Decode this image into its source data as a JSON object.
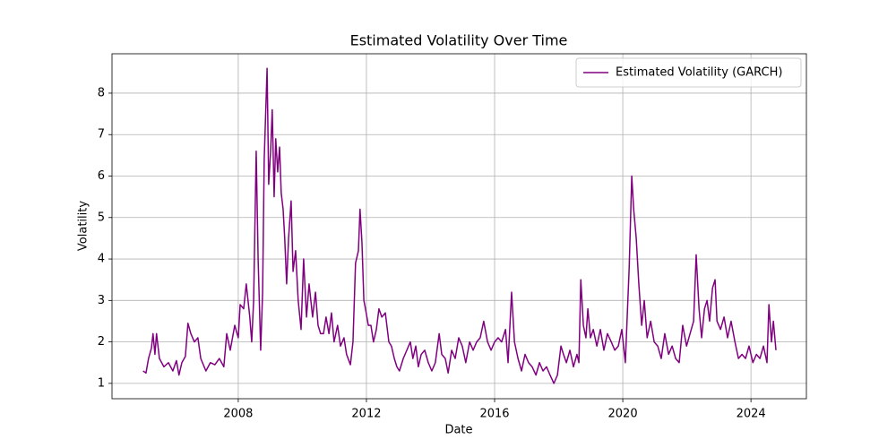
{
  "chart_data": {
    "type": "line",
    "title": "Estimated Volatility Over Time",
    "x_label": "Date",
    "y_label": "Volatility",
    "x": [
      2005.03,
      2005.12,
      2005.2,
      2005.29,
      2005.34,
      2005.4,
      2005.45,
      2005.54,
      2005.68,
      2005.82,
      2005.96,
      2006.07,
      2006.15,
      2006.24,
      2006.35,
      2006.43,
      2006.52,
      2006.63,
      2006.74,
      2006.83,
      2006.99,
      2007.13,
      2007.27,
      2007.41,
      2007.55,
      2007.64,
      2007.75,
      2007.89,
      2008.0,
      2008.06,
      2008.17,
      2008.25,
      2008.36,
      2008.42,
      2008.48,
      2008.56,
      2008.62,
      2008.7,
      2008.76,
      2008.81,
      2008.9,
      2008.95,
      2009.01,
      2009.06,
      2009.12,
      2009.17,
      2009.23,
      2009.29,
      2009.34,
      2009.4,
      2009.45,
      2009.51,
      2009.57,
      2009.65,
      2009.71,
      2009.79,
      2009.87,
      2009.96,
      2010.04,
      2010.13,
      2010.21,
      2010.32,
      2010.41,
      2010.49,
      2010.57,
      2010.66,
      2010.74,
      2010.83,
      2010.91,
      2010.99,
      2011.1,
      2011.19,
      2011.3,
      2011.38,
      2011.5,
      2011.58,
      2011.66,
      2011.75,
      2011.8,
      2011.86,
      2011.92,
      2011.97,
      2012.06,
      2012.14,
      2012.22,
      2012.31,
      2012.39,
      2012.48,
      2012.59,
      2012.7,
      2012.78,
      2012.87,
      2012.95,
      2013.03,
      2013.15,
      2013.26,
      2013.37,
      2013.45,
      2013.54,
      2013.62,
      2013.71,
      2013.82,
      2013.93,
      2014.04,
      2014.15,
      2014.27,
      2014.35,
      2014.46,
      2014.55,
      2014.66,
      2014.77,
      2014.88,
      2014.99,
      2015.1,
      2015.22,
      2015.33,
      2015.44,
      2015.55,
      2015.66,
      2015.78,
      2015.89,
      2016.0,
      2016.11,
      2016.22,
      2016.34,
      2016.42,
      2016.53,
      2016.62,
      2016.73,
      2016.84,
      2016.95,
      2017.06,
      2017.17,
      2017.29,
      2017.4,
      2017.51,
      2017.62,
      2017.73,
      2017.85,
      2017.96,
      2018.07,
      2018.15,
      2018.24,
      2018.35,
      2018.46,
      2018.57,
      2018.63,
      2018.69,
      2018.77,
      2018.85,
      2018.91,
      2018.99,
      2019.08,
      2019.19,
      2019.3,
      2019.41,
      2019.52,
      2019.64,
      2019.75,
      2019.86,
      2019.97,
      2020.08,
      2020.2,
      2020.28,
      2020.34,
      2020.42,
      2020.5,
      2020.59,
      2020.67,
      2020.76,
      2020.87,
      2020.98,
      2021.09,
      2021.2,
      2021.31,
      2021.43,
      2021.54,
      2021.65,
      2021.76,
      2021.87,
      2021.99,
      2022.1,
      2022.21,
      2022.29,
      2022.38,
      2022.46,
      2022.55,
      2022.63,
      2022.71,
      2022.8,
      2022.88,
      2022.94,
      2023.05,
      2023.16,
      2023.27,
      2023.38,
      2023.5,
      2023.61,
      2023.72,
      2023.83,
      2023.94,
      2024.06,
      2024.17,
      2024.28,
      2024.39,
      2024.5,
      2024.56,
      2024.64,
      2024.7,
      2024.78
    ],
    "series": [
      {
        "name": "Estimated Volatility (GARCH)",
        "color": "#800080",
        "values": [
          1.3,
          1.25,
          1.6,
          1.85,
          2.2,
          1.7,
          2.2,
          1.6,
          1.4,
          1.5,
          1.3,
          1.55,
          1.2,
          1.5,
          1.65,
          2.45,
          2.2,
          2.0,
          2.1,
          1.6,
          1.3,
          1.5,
          1.45,
          1.6,
          1.4,
          2.2,
          1.8,
          2.4,
          2.1,
          2.9,
          2.8,
          3.4,
          2.6,
          2.0,
          3.0,
          6.6,
          4.0,
          1.8,
          3.2,
          6.4,
          8.6,
          5.8,
          6.6,
          7.6,
          5.5,
          6.9,
          6.1,
          6.7,
          5.6,
          5.2,
          4.5,
          3.4,
          4.5,
          5.4,
          3.7,
          4.2,
          3.0,
          2.3,
          4.0,
          2.6,
          3.4,
          2.6,
          3.2,
          2.4,
          2.2,
          2.2,
          2.6,
          2.2,
          2.7,
          2.0,
          2.4,
          1.9,
          2.1,
          1.7,
          1.45,
          2.0,
          3.9,
          4.2,
          5.2,
          4.4,
          3.0,
          2.8,
          2.4,
          2.4,
          2.0,
          2.3,
          2.8,
          2.6,
          2.7,
          2.0,
          1.9,
          1.6,
          1.4,
          1.3,
          1.6,
          1.8,
          2.0,
          1.6,
          1.9,
          1.4,
          1.7,
          1.8,
          1.5,
          1.3,
          1.5,
          2.2,
          1.7,
          1.6,
          1.25,
          1.8,
          1.6,
          2.1,
          1.9,
          1.5,
          2.0,
          1.8,
          2.0,
          2.1,
          2.5,
          2.0,
          1.8,
          2.0,
          2.1,
          2.0,
          2.3,
          1.5,
          3.2,
          2.0,
          1.6,
          1.3,
          1.7,
          1.5,
          1.4,
          1.2,
          1.5,
          1.3,
          1.4,
          1.2,
          1.0,
          1.2,
          1.9,
          1.7,
          1.5,
          1.8,
          1.4,
          1.7,
          1.5,
          3.5,
          2.4,
          2.1,
          2.8,
          2.1,
          2.3,
          1.9,
          2.3,
          1.8,
          2.2,
          2.0,
          1.8,
          1.9,
          2.3,
          1.5,
          3.8,
          6.0,
          5.2,
          4.5,
          3.4,
          2.4,
          3.0,
          2.1,
          2.5,
          2.0,
          1.9,
          1.6,
          2.2,
          1.7,
          1.9,
          1.6,
          1.5,
          2.4,
          1.9,
          2.2,
          2.5,
          4.1,
          2.8,
          2.1,
          2.8,
          3.0,
          2.5,
          3.3,
          3.5,
          2.5,
          2.3,
          2.6,
          2.1,
          2.5,
          2.0,
          1.6,
          1.7,
          1.6,
          1.9,
          1.5,
          1.7,
          1.6,
          1.9,
          1.5,
          2.9,
          2.0,
          2.5,
          1.8
        ]
      }
    ],
    "xlim": [
      2004.06,
      2025.73
    ],
    "ylim": [
      0.63,
      8.95
    ],
    "xticks": [
      2008,
      2012,
      2016,
      2020,
      2024
    ],
    "yticks": [
      1,
      2,
      3,
      4,
      5,
      6,
      7,
      8
    ],
    "grid": true,
    "legend": "upper right"
  }
}
